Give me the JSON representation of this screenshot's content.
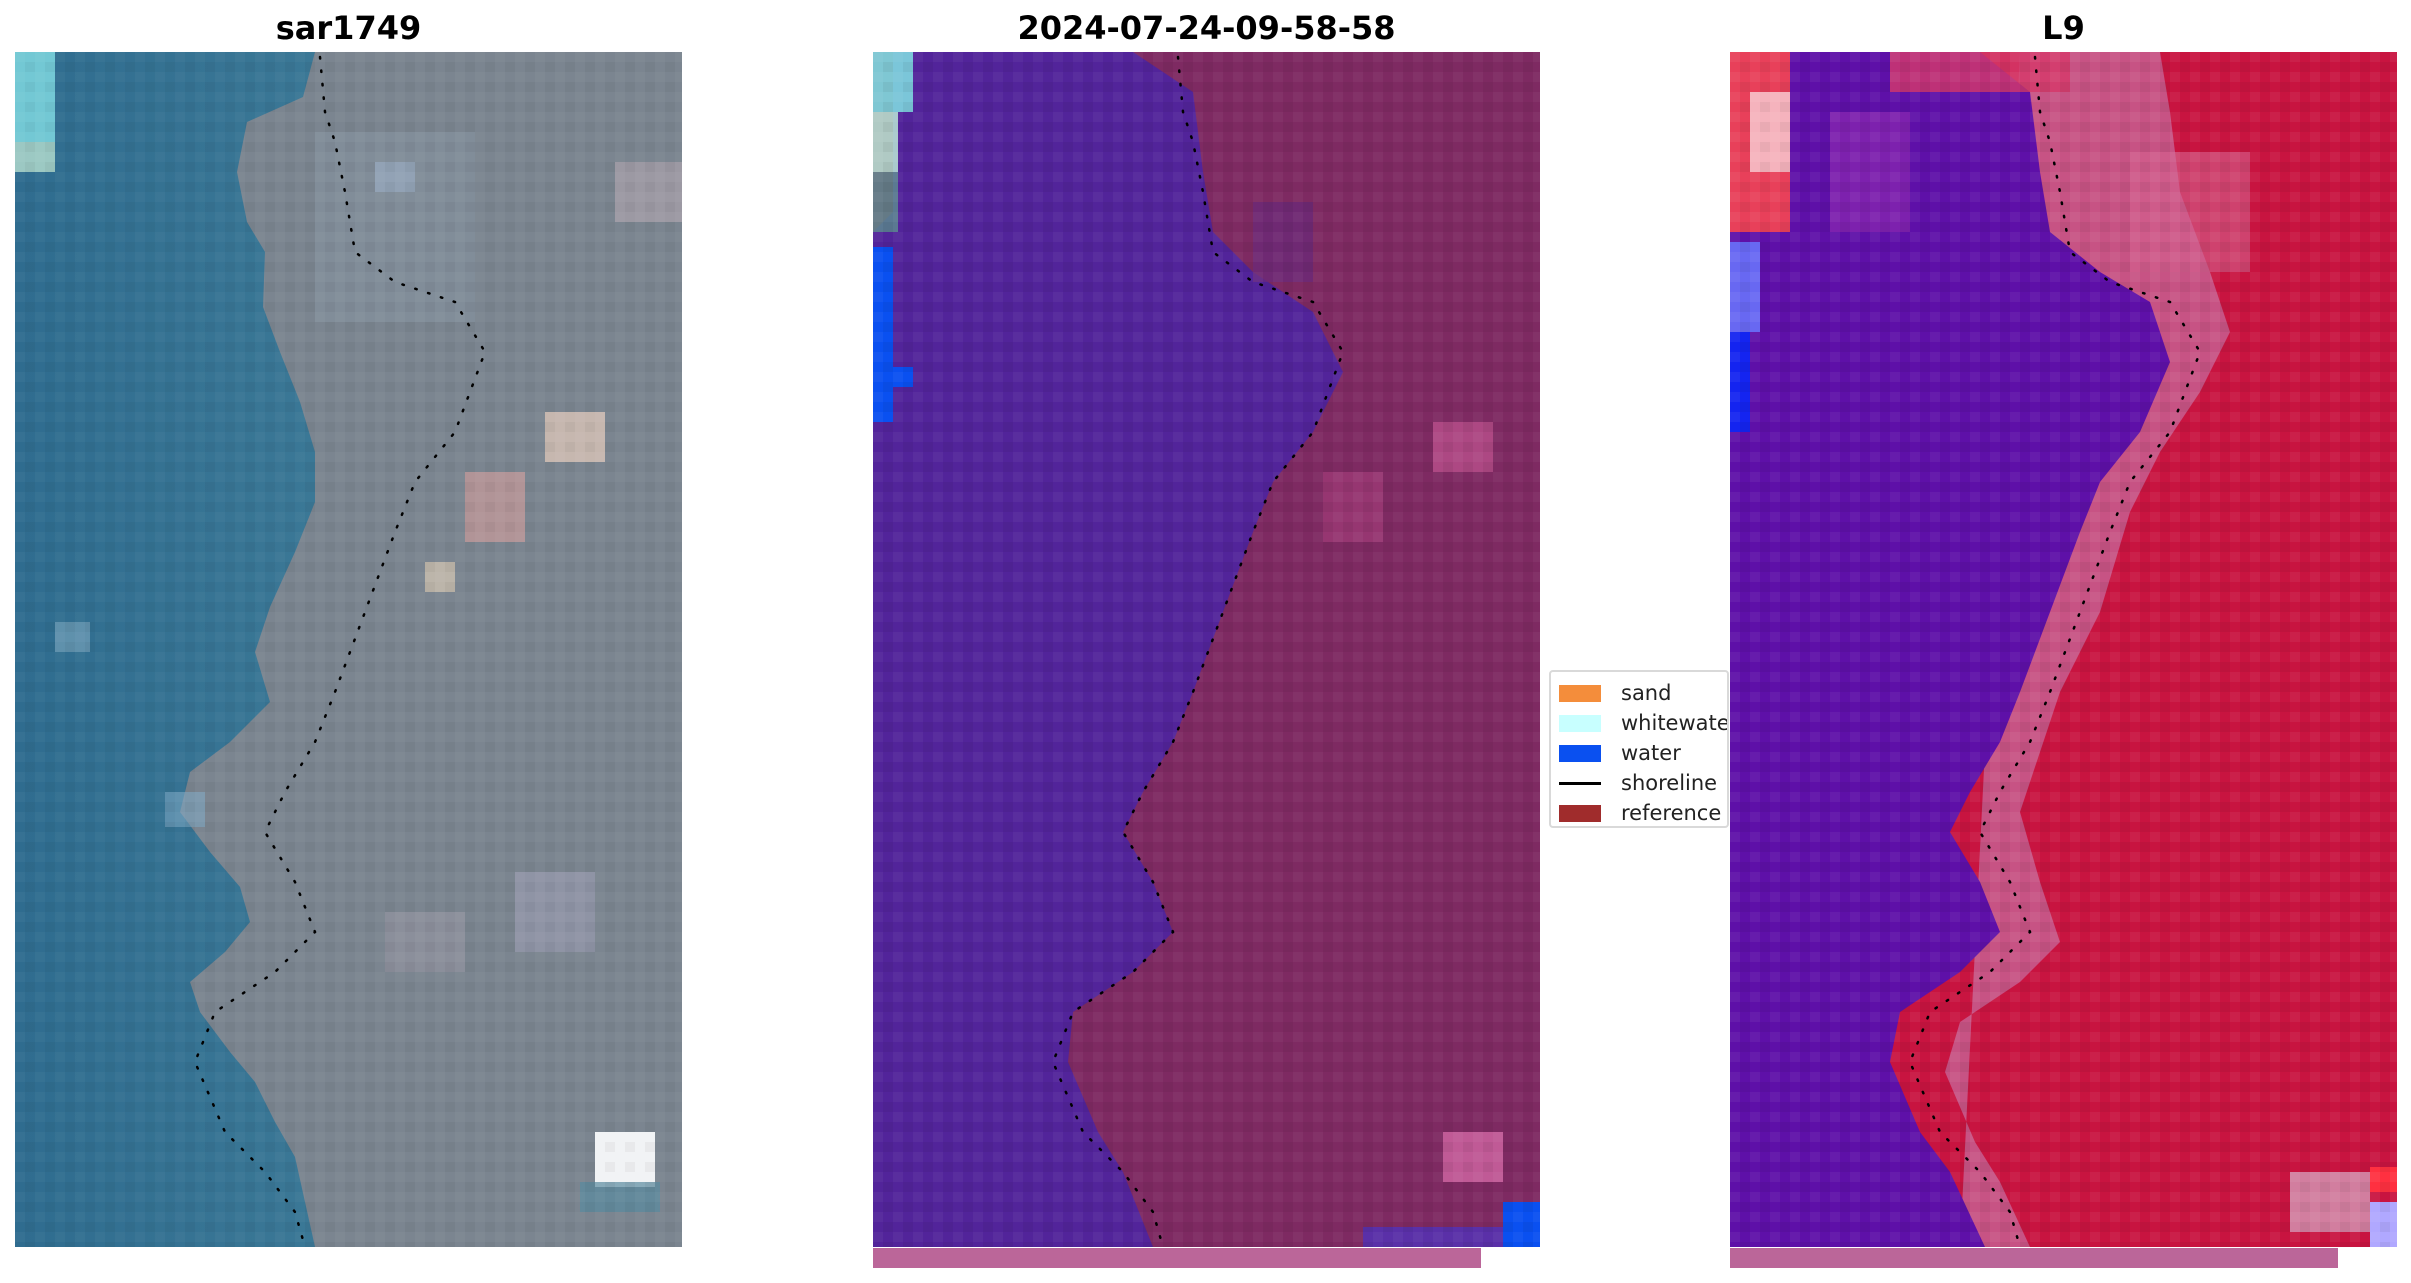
{
  "panels": [
    {
      "title": "sar1749"
    },
    {
      "title": "2024-07-24-09-58-58"
    },
    {
      "title": "L9"
    }
  ],
  "legend": {
    "items": [
      {
        "label": "sand",
        "color": "#f48d3b",
        "kind": "patch"
      },
      {
        "label": "whitewater",
        "color": "#c8ffff",
        "kind": "patch"
      },
      {
        "label": "water",
        "color": "#0a50f0",
        "kind": "patch"
      },
      {
        "label": "shoreline",
        "color": "#000000",
        "kind": "line"
      },
      {
        "label": "reference s",
        "color": "#a02c2c",
        "kind": "patch"
      }
    ]
  },
  "colors": {
    "sea_rgb": "#2f6f93",
    "land_rgb": "#7a8590",
    "water_class": "#52249a",
    "land_class": "#7e2a62",
    "bottom_bar": "#bb6699",
    "sea_nir": "#5e10a8",
    "land_nir": "#c8143c",
    "shoreline_dots": "#000000"
  }
}
